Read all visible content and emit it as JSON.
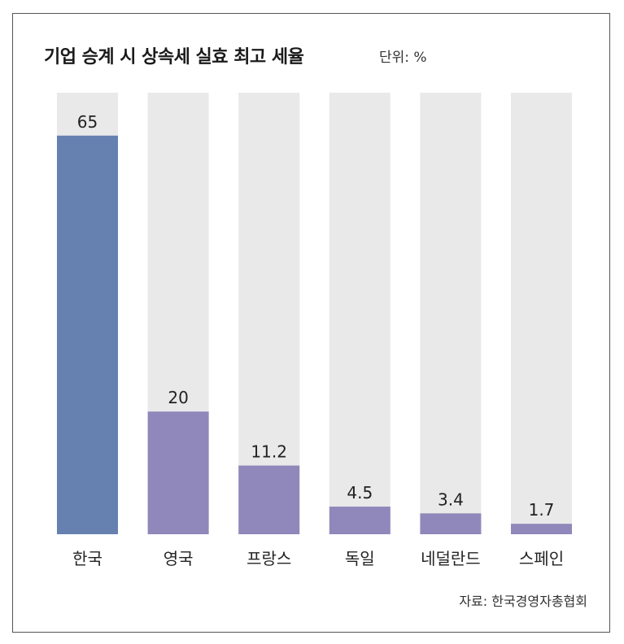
{
  "chart_data": {
    "type": "bar",
    "title": "기업 승계 시 상속세 실효 최고 세율",
    "unit_label": "단위: %",
    "categories": [
      "한국",
      "영국",
      "프랑스",
      "독일",
      "네덜란드",
      "스페인"
    ],
    "values": [
      65,
      20,
      11.2,
      4.5,
      3.4,
      1.7
    ],
    "value_labels": [
      "65",
      "20",
      "11.2",
      "4.5",
      "3.4",
      "1.7"
    ],
    "ylim": [
      0,
      72
    ],
    "grid": false,
    "source": "자료: 한국경영자총협회",
    "colors": {
      "highlight": "#6680B0",
      "bar": "#9088BA",
      "track": "#E9E9E9"
    }
  }
}
